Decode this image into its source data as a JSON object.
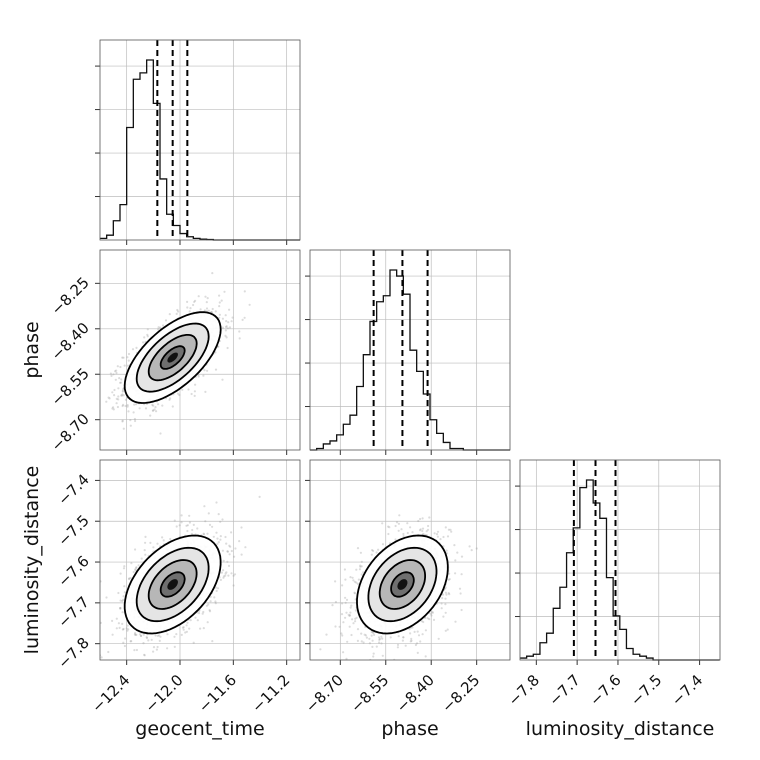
{
  "chart_data": {
    "type": "corner",
    "parameters": [
      "geocent_time",
      "phase",
      "luminosity_distance"
    ],
    "axes": {
      "geocent_time": {
        "label": "geocent_time",
        "range": [
          -12.6,
          -11.1
        ],
        "ticks": [
          -12.4,
          -12.0,
          -11.6,
          -11.2
        ],
        "tick_labels": [
          "−12.4",
          "−12.0",
          "−11.6",
          "−11.2"
        ]
      },
      "phase": {
        "label": "phase",
        "range": [
          -8.8,
          -8.14
        ],
        "ticks": [
          -8.7,
          -8.55,
          -8.4,
          -8.25
        ],
        "tick_labels": [
          "−8.70",
          "−8.55",
          "−8.40",
          "−8.25"
        ]
      },
      "luminosity_distance": {
        "label": "luminosity_distance",
        "range": [
          -7.84,
          -7.35
        ],
        "ticks": [
          -7.8,
          -7.7,
          -7.6,
          -7.5,
          -7.4
        ],
        "tick_labels": [
          "−7.8",
          "−7.7",
          "−7.6",
          "−7.5",
          "−7.4"
        ]
      }
    },
    "marginals": {
      "geocent_time": {
        "bin_edges_start": -12.6,
        "bin_width": 0.05,
        "counts": [
          1,
          3,
          12,
          22,
          70,
          100,
          104,
          112,
          85,
          38,
          16,
          9,
          4,
          2,
          1,
          0.5,
          0.3,
          0,
          0,
          0,
          0,
          0,
          0,
          0,
          0,
          0,
          0,
          0,
          0,
          0
        ],
        "quantiles": [
          -12.17,
          -12.055,
          -11.945
        ]
      },
      "phase": {
        "bin_edges_start": -8.8,
        "bin_width": 0.022,
        "counts": [
          0,
          1,
          4,
          6,
          10,
          17,
          23,
          42,
          63,
          85,
          98,
          102,
          119,
          115,
          103,
          66,
          52,
          37,
          20,
          11,
          5,
          1,
          1,
          0,
          0,
          0,
          0,
          0,
          0,
          0
        ],
        "quantiles": [
          -8.59,
          -8.495,
          -8.412
        ]
      },
      "luminosity_distance": {
        "bin_edges_start": -7.84,
        "bin_width": 0.0163,
        "counts": [
          1,
          2,
          3,
          9,
          14,
          27,
          38,
          56,
          69,
          90,
          94,
          82,
          74,
          43,
          23,
          16,
          6,
          3,
          2,
          1,
          0,
          0,
          0,
          0,
          0,
          0,
          0,
          0,
          0,
          0
        ],
        "quantiles": [
          -7.708,
          -7.655,
          -7.606
        ]
      }
    },
    "joint": [
      {
        "x": "geocent_time",
        "y": "phase",
        "mean": [
          -12.055,
          -8.495
        ],
        "std": [
          0.18,
          0.075
        ],
        "corr": 0.62
      },
      {
        "x": "geocent_time",
        "y": "luminosity_distance",
        "mean": [
          -12.055,
          -7.655
        ],
        "std": [
          0.18,
          0.06
        ],
        "corr": 0.45
      },
      {
        "x": "phase",
        "y": "luminosity_distance",
        "mean": [
          -8.495,
          -7.655
        ],
        "std": [
          0.075,
          0.06
        ],
        "corr": 0.35
      }
    ],
    "contour_levels_sigma": [
      0.5,
      1.0,
      1.5,
      2.0
    ],
    "grid": true
  }
}
